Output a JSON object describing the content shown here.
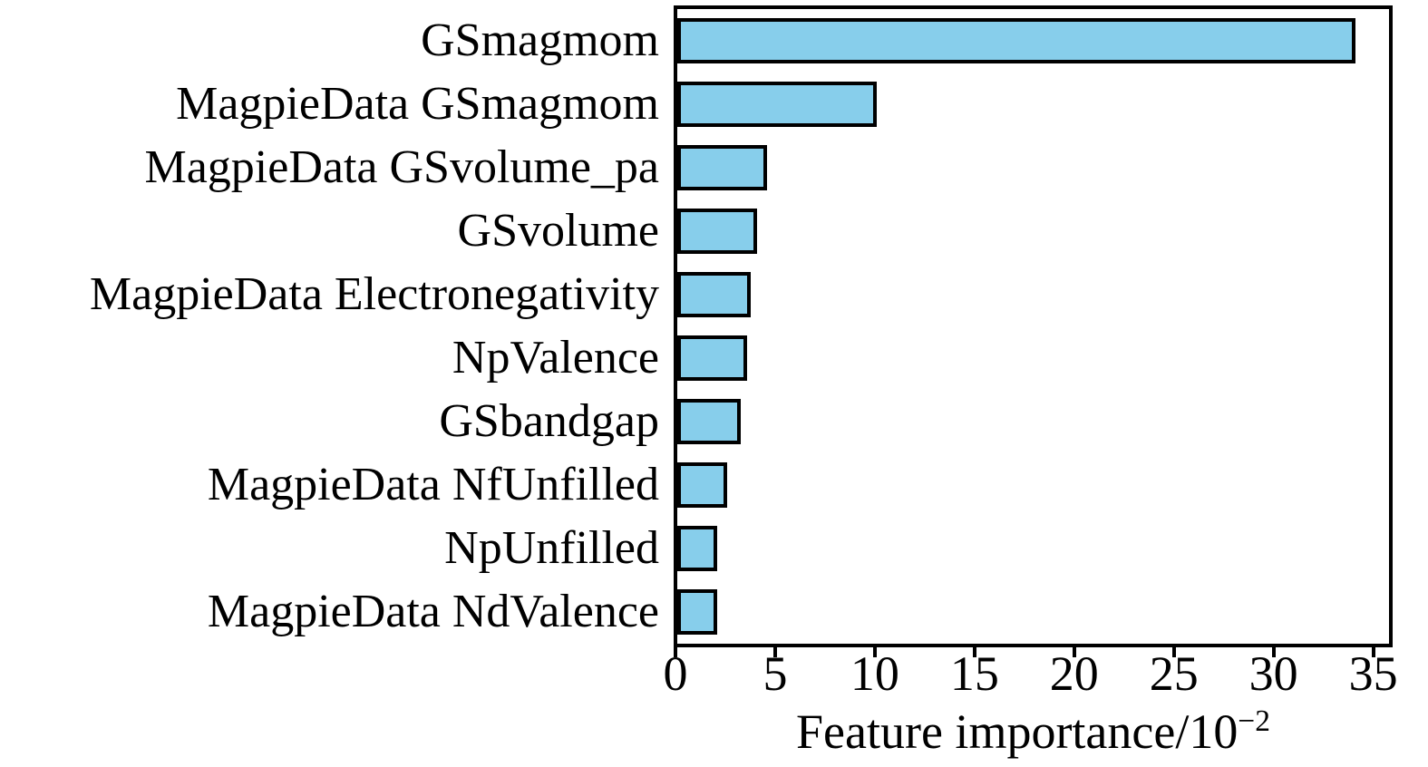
{
  "figure": {
    "background_color": "#ffffff",
    "text_color": "#000000"
  },
  "chart_data": {
    "type": "bar",
    "orientation": "horizontal",
    "title": "",
    "categories": [
      "GSmagmom",
      "MagpieData GSmagmom",
      "MagpieData GSvolume_pa",
      "GSvolume",
      "MagpieData Electronegativity",
      "NpValence",
      "GSbandgap",
      "MagpieData NfUnfilled",
      "NpUnfilled",
      "MagpieData NdValence"
    ],
    "values": [
      34,
      10,
      4.5,
      4.0,
      3.7,
      3.5,
      3.2,
      2.5,
      2.0,
      2.0
    ],
    "xlabel": "Feature importance/10⁻²",
    "xlabel_base": "Feature importance/10",
    "xlabel_superscript": "−2",
    "ylabel": "",
    "xticks": [
      0,
      5,
      10,
      15,
      20,
      25,
      30,
      35
    ],
    "xlim": [
      0,
      35.7
    ],
    "grid": false,
    "legend": false,
    "bar_color": "#87CEEB",
    "bar_edge_color": "#000000",
    "axis_color": "#000000"
  }
}
